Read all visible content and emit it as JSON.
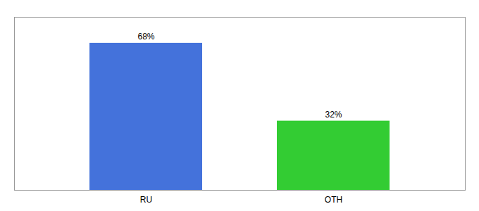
{
  "chart_data": {
    "type": "bar",
    "categories": [
      "RU",
      "OTH"
    ],
    "values": [
      68,
      32
    ],
    "value_labels": [
      "68%",
      "32%"
    ],
    "colors": [
      "#4472db",
      "#33cc33"
    ],
    "ylim": [
      0,
      80
    ],
    "data_labels": true,
    "grid": false,
    "tick_labels": "x"
  }
}
